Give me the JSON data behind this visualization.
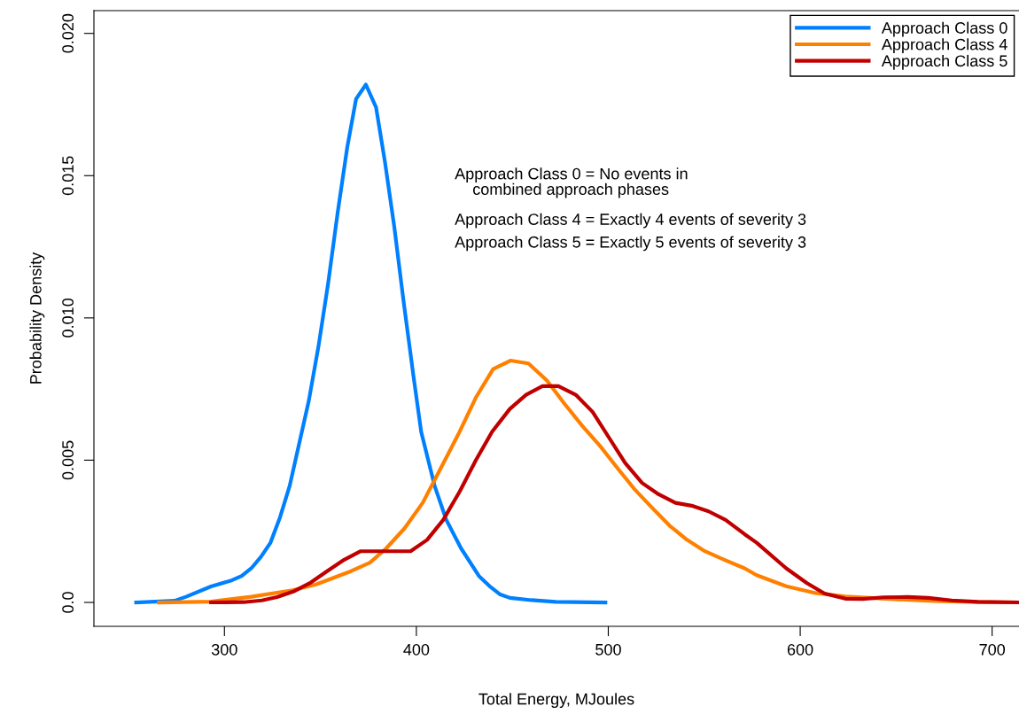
{
  "chart_data": {
    "type": "line",
    "xlabel": "Total Energy, MJoules",
    "ylabel": "Probability Density",
    "xlim": [
      232,
      714
    ],
    "xticks": [
      300,
      400,
      500,
      600,
      700
    ],
    "ylim": [
      -0.00084,
      0.0208
    ],
    "yticks": [
      {
        "value": 0,
        "label": "0.0"
      },
      0.005,
      {
        "value": 0.01,
        "label": "0.010"
      },
      0.015,
      {
        "value": 0.02,
        "label": "0.020"
      }
    ],
    "grid": false,
    "legend": "top right",
    "marker": "none",
    "line_style": "solid",
    "annotations": [
      "Approach Class 0 = No events in\n    combined approach phases",
      "Approach Class 4 = Exactly 4 events of severity 3",
      "Approach Class 5 = Exactly 5 events of severity 3"
    ],
    "series": [
      {
        "name": "Approach Class 0",
        "color": "#0080ff",
        "x": [
          254,
          274,
          280,
          293,
          304,
          309,
          314,
          319,
          324,
          329,
          334,
          339,
          344,
          349,
          354,
          359,
          364,
          368.6,
          373.7,
          379,
          383.6,
          388.5,
          393.3,
          398.4,
          402.5,
          409.5,
          415.6,
          423.3,
          432.6,
          438.7,
          443.4,
          448.7,
          460,
          472.6,
          498.5
        ],
        "values": [
          0,
          6e-05,
          0.0002,
          0.00056,
          0.00078,
          0.00093,
          0.0012,
          0.0016,
          0.0021,
          0.003,
          0.0041,
          0.0056,
          0.0071,
          0.009,
          0.0112,
          0.0137,
          0.016,
          0.0177,
          0.0182,
          0.0174,
          0.0155,
          0.0132,
          0.0106,
          0.008,
          0.006,
          0.0041,
          0.0029,
          0.0019,
          0.00093,
          0.00054,
          0.00029,
          0.00016,
          8e-05,
          2e-05,
          0
        ]
      },
      {
        "name": "Approach Class 4",
        "color": "#ff8000",
        "x": [
          265.8,
          293,
          314,
          335.6,
          348,
          366,
          375.8,
          384.3,
          393.8,
          403.3,
          412.6,
          421.8,
          431,
          440,
          449,
          458.4,
          468,
          477,
          486.5,
          495.7,
          505,
          513.4,
          521.8,
          531.9,
          541,
          550.3,
          560.4,
          571,
          577.3,
          592.7,
          608,
          623.5,
          646.6,
          669.7,
          692.7,
          714
        ],
        "values": [
          0,
          3e-05,
          0.0002,
          0.00043,
          0.00064,
          0.0011,
          0.0014,
          0.0019,
          0.0026,
          0.0035,
          0.0047,
          0.0059,
          0.0072,
          0.0082,
          0.0085,
          0.0084,
          0.0078,
          0.007,
          0.0062,
          0.0055,
          0.0047,
          0.004,
          0.0034,
          0.0027,
          0.0022,
          0.0018,
          0.0015,
          0.0012,
          0.00096,
          0.00057,
          0.00033,
          0.00021,
          0.00012,
          5e-05,
          1e-05,
          0
        ]
      },
      {
        "name": "Approach Class 5",
        "color": "#c00000",
        "x": [
          293,
          310,
          319.5,
          327.4,
          336.5,
          345,
          353.5,
          362.4,
          371,
          379.6,
          388.5,
          397,
          405.6,
          414,
          422.6,
          431,
          439.5,
          448.7,
          457.2,
          465.7,
          474,
          483,
          491.8,
          500.3,
          508.8,
          517.6,
          526.2,
          535,
          543.4,
          552.3,
          561.1,
          571,
          577.3,
          592.7,
          603.5,
          612.7,
          623.5,
          632.7,
          643.5,
          655.8,
          666.6,
          678.9,
          692.7,
          714
        ],
        "values": [
          0,
          1e-05,
          7e-05,
          0.00019,
          0.0004,
          0.0007,
          0.0011,
          0.0015,
          0.0018,
          0.0018,
          0.0018,
          0.0018,
          0.0022,
          0.0029,
          0.0039,
          0.005,
          0.006,
          0.0068,
          0.0073,
          0.0076,
          0.0076,
          0.0073,
          0.0067,
          0.0058,
          0.0049,
          0.0042,
          0.0038,
          0.0035,
          0.0034,
          0.0032,
          0.0029,
          0.0024,
          0.0021,
          0.0012,
          0.00068,
          0.00031,
          0.00013,
          0.00012,
          0.00018,
          0.00019,
          0.00016,
          7e-05,
          2e-05,
          0
        ]
      }
    ]
  }
}
